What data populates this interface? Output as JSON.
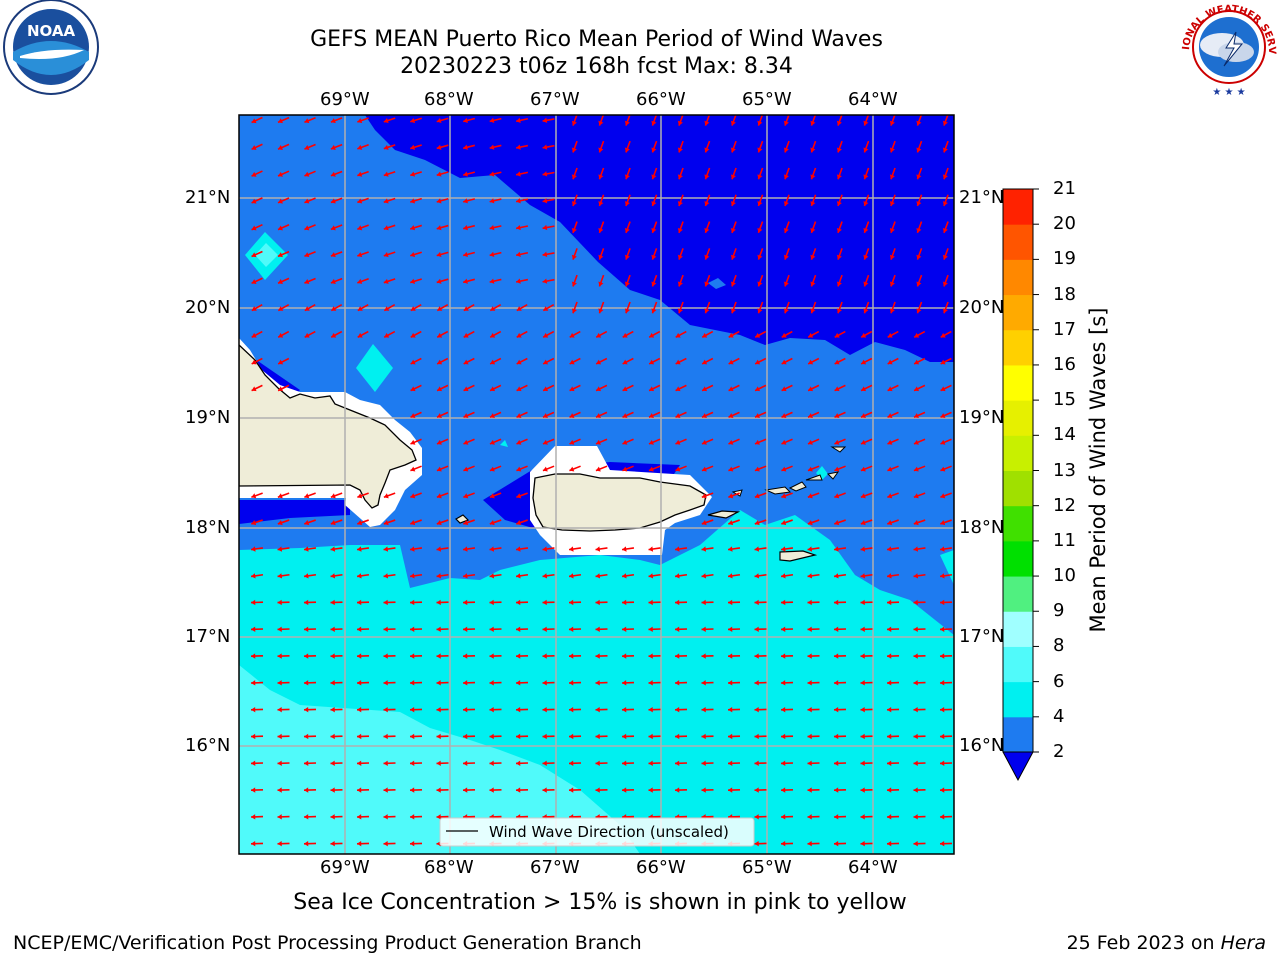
{
  "header": {
    "title_line1": "GEFS MEAN Puerto Rico Mean Period of Wind Waves",
    "title_line2": "20230223 t06z 168h fcst   Max: 8.34"
  },
  "logos": {
    "left": "NOAA",
    "right": "NATIONAL WEATHER SERVICE"
  },
  "map": {
    "lon_labels": [
      "69°W",
      "68°W",
      "67°W",
      "66°W",
      "65°W",
      "64°W"
    ],
    "lat_labels": [
      "21°N",
      "20°N",
      "19°N",
      "18°N",
      "17°N",
      "16°N"
    ],
    "legend_label": "Wind Wave Direction (unscaled)",
    "colors": {
      "land": "#efedd8",
      "class_lt2": "#0000ee",
      "class_2_4": "#1e7bf0",
      "class_4_6": "#00f0f0",
      "class_6_8": "#50fafa",
      "arrow": "#ff0000"
    }
  },
  "colorbar": {
    "label": "Mean Period of Wind Waves [s]",
    "ticks": [
      "21",
      "20",
      "19",
      "18",
      "17",
      "16",
      "15",
      "14",
      "13",
      "12",
      "11",
      "10",
      "9",
      "8",
      "6",
      "4",
      "2"
    ],
    "colors": [
      "#0000ee",
      "#1e7bf0",
      "#00f0f0",
      "#50fafa",
      "#a0ffff",
      "#50f080",
      "#00e000",
      "#40e000",
      "#a0e000",
      "#c8f000",
      "#e6f000",
      "#ffff00",
      "#ffd000",
      "#ffaa00",
      "#ff8800",
      "#ff5500",
      "#ff2200",
      "#ff0000"
    ]
  },
  "caption": "Sea Ice Concentration > 15% is shown in pink to yellow",
  "footer": {
    "left": "NCEP/EMC/Verification Post Processing Product Generation Branch",
    "right_prefix": "25 Feb 2023 on ",
    "right_machine": "Hera"
  }
}
